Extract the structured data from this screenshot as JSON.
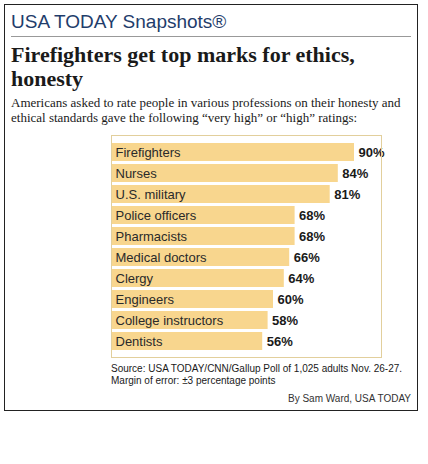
{
  "chart_data": {
    "type": "bar",
    "header": "USA TODAY Snapshots®",
    "title": "Firefighters get top marks for ethics, honesty",
    "subtitle": "Americans asked to rate people in various professions on their honesty and ethical standards gave the following “very high” or “high” ratings:",
    "source": "Source: USA TODAY/CNN/Gallup Poll of 1,025 adults Nov. 26-27. Margin of error: ±3 percentage points",
    "credit": "By Sam Ward, USA TODAY",
    "orientation": "horizontal",
    "categories": [
      "Firefighters",
      "Nurses",
      "U.S. military",
      "Police officers",
      "Pharmacists",
      "Medical doctors",
      "Clergy",
      "Engineers",
      "College instructors",
      "Dentists"
    ],
    "values": [
      90,
      84,
      81,
      68,
      68,
      66,
      64,
      60,
      58,
      56
    ],
    "value_labels": [
      "90%",
      "84%",
      "81%",
      "68%",
      "68%",
      "66%",
      "64%",
      "60%",
      "58%",
      "56%"
    ],
    "data_labels": true,
    "tick_labels": false,
    "color": "#f8d68e",
    "xlim": [
      0,
      100
    ]
  }
}
